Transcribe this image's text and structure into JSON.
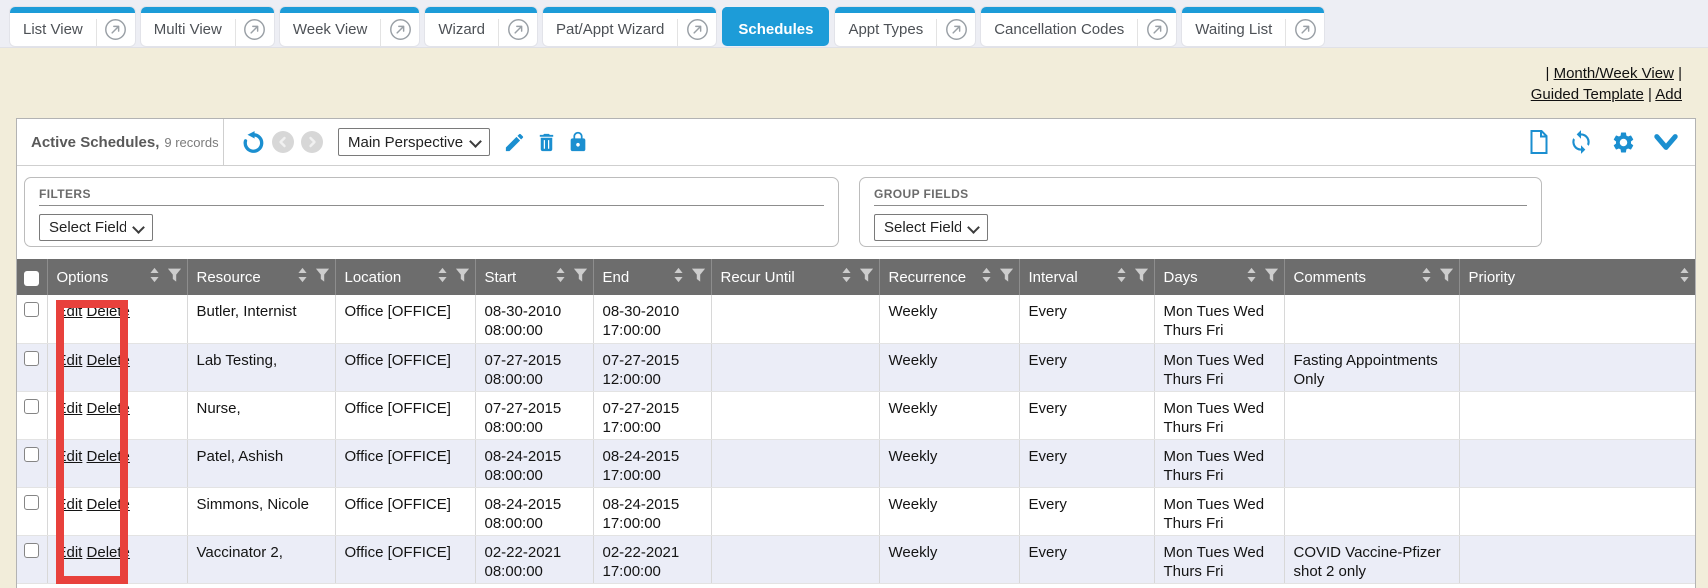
{
  "tabs": [
    {
      "label": "List View",
      "active": false
    },
    {
      "label": "Multi View",
      "active": false
    },
    {
      "label": "Week View",
      "active": false
    },
    {
      "label": "Wizard",
      "active": false
    },
    {
      "label": "Pat/Appt Wizard",
      "active": false
    },
    {
      "label": "Schedules",
      "active": true
    },
    {
      "label": "Appt Types",
      "active": false
    },
    {
      "label": "Cancellation Codes",
      "active": false
    },
    {
      "label": "Waiting List",
      "active": false
    }
  ],
  "quick_links": {
    "separator": "|",
    "month_week_view": "Month/Week View",
    "guided_template": "Guided Template",
    "add": "Add"
  },
  "toolbar": {
    "title": "Active Schedules,",
    "record_count": "9 records",
    "perspective_selected": "Main Perspective"
  },
  "filters": {
    "label": "FILTERS",
    "select_value": "Select Field"
  },
  "group_fields": {
    "label": "GROUP FIELDS",
    "select_value": "Select Field"
  },
  "table": {
    "columns": [
      "Options",
      "Resource",
      "Location",
      "Start",
      "End",
      "Recur Until",
      "Recurrence",
      "Interval",
      "Days",
      "Comments",
      "Priority"
    ],
    "options": {
      "edit": "Edit",
      "delete": "Delete"
    },
    "rows": [
      {
        "resource": "Butler, Internist",
        "location": "Office [OFFICE]",
        "start_date": "08-30-2010",
        "start_time": "08:00:00",
        "end_date": "08-30-2010",
        "end_time": "17:00:00",
        "recur_until": "",
        "recurrence": "Weekly",
        "interval": "Every",
        "days": "Mon Tues Wed Thurs Fri",
        "comments": "",
        "priority": ""
      },
      {
        "resource": "Lab Testing,",
        "location": "Office [OFFICE]",
        "start_date": "07-27-2015",
        "start_time": "08:00:00",
        "end_date": "07-27-2015",
        "end_time": "12:00:00",
        "recur_until": "",
        "recurrence": "Weekly",
        "interval": "Every",
        "days": "Mon Tues Wed Thurs Fri",
        "comments": "Fasting Appointments Only",
        "priority": ""
      },
      {
        "resource": "Nurse,",
        "location": "Office [OFFICE]",
        "start_date": "07-27-2015",
        "start_time": "08:00:00",
        "end_date": "07-27-2015",
        "end_time": "17:00:00",
        "recur_until": "",
        "recurrence": "Weekly",
        "interval": "Every",
        "days": "Mon Tues Wed Thurs Fri",
        "comments": "",
        "priority": ""
      },
      {
        "resource": "Patel, Ashish",
        "location": "Office [OFFICE]",
        "start_date": "08-24-2015",
        "start_time": "08:00:00",
        "end_date": "08-24-2015",
        "end_time": "17:00:00",
        "recur_until": "",
        "recurrence": "Weekly",
        "interval": "Every",
        "days": "Mon Tues Wed Thurs Fri",
        "comments": "",
        "priority": ""
      },
      {
        "resource": "Simmons, Nicole",
        "location": "Office [OFFICE]",
        "start_date": "08-24-2015",
        "start_time": "08:00:00",
        "end_date": "08-24-2015",
        "end_time": "17:00:00",
        "recur_until": "",
        "recurrence": "Weekly",
        "interval": "Every",
        "days": "Mon Tues Wed Thurs Fri",
        "comments": "",
        "priority": ""
      },
      {
        "resource": "Vaccinator 2,",
        "location": "Office [OFFICE]",
        "start_date": "02-22-2021",
        "start_time": "08:00:00",
        "end_date": "02-22-2021",
        "end_time": "17:00:00",
        "recur_until": "",
        "recurrence": "Weekly",
        "interval": "Every",
        "days": "Mon Tues Wed Thurs Fri",
        "comments": "COVID Vaccine-Pfizer shot 2 only",
        "priority": ""
      }
    ]
  },
  "icons": {
    "tab_popout": "arrow-up-right-in-circle",
    "undo": "rotate-left-arrow",
    "prev": "chevron-left-circle",
    "next": "chevron-right-circle",
    "edit": "pencil",
    "delete": "trash-can",
    "lock": "padlock",
    "new_document": "blank-page",
    "refresh": "sync-arrows",
    "settings": "gear",
    "collapse": "chevron-down",
    "sort": "up-down-triangles",
    "filter": "funnel"
  },
  "annotation": {
    "color": "#e8413c"
  },
  "colors": {
    "accent_blue": "#1d9cd8",
    "icon_blue": "#1b8fd0",
    "header_gray": "#6d6d6d",
    "row_alt": "#ebedf7",
    "page_beige": "#f2edda",
    "tabbar_gray": "#edeef4"
  }
}
